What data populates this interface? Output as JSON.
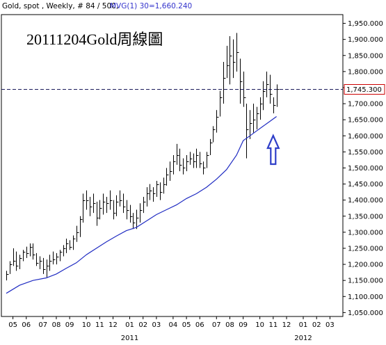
{
  "header": {
    "instrument": "Gold, spot , Weekly, # 84 / 500,",
    "indicator": "MVG(1) 30=1,660.240",
    "indicator_color": "#3333cc"
  },
  "chart_data": {
    "type": "ohlc",
    "title": "20111204Gold周線圖",
    "ylim": [
      1040,
      1975
    ],
    "y_ticks": [
      1050,
      1100,
      1150,
      1200,
      1250,
      1300,
      1350,
      1400,
      1450,
      1500,
      1550,
      1600,
      1650,
      1700,
      1750,
      1800,
      1850,
      1900,
      1950
    ],
    "y_tick_labels": [
      "1,050.000",
      "1,100.000",
      "1,150.000",
      "1,200.000",
      "1,250.000",
      "1,300.000",
      "1,350.000",
      "1,400.000",
      "1,450.000",
      "1,500.000",
      "1,550.000",
      "1,600.000",
      "1,650.000",
      "1,700.000",
      "1,750.000",
      "1,800.000",
      "1,850.000",
      "1,900.000",
      "1,950.000"
    ],
    "x_ticks": [
      {
        "label": "05",
        "week": 2
      },
      {
        "label": "06",
        "week": 6
      },
      {
        "label": "07",
        "week": 11
      },
      {
        "label": "08",
        "week": 15
      },
      {
        "label": "09",
        "week": 19
      },
      {
        "label": "10",
        "week": 24
      },
      {
        "label": "11",
        "week": 28
      },
      {
        "label": "12",
        "week": 32
      },
      {
        "label": "01",
        "week": 37
      },
      {
        "label": "02",
        "week": 41
      },
      {
        "label": "03",
        "week": 45
      },
      {
        "label": "04",
        "week": 50
      },
      {
        "label": "05",
        "week": 54
      },
      {
        "label": "06",
        "week": 58
      },
      {
        "label": "07",
        "week": 63
      },
      {
        "label": "08",
        "week": 67
      },
      {
        "label": "09",
        "week": 71
      },
      {
        "label": "10",
        "week": 76
      },
      {
        "label": "11",
        "week": 80
      },
      {
        "label": "12",
        "week": 84
      },
      {
        "label": "01",
        "week": 89
      },
      {
        "label": "02",
        "week": 93
      },
      {
        "label": "03",
        "week": 97
      }
    ],
    "year_labels": [
      {
        "label": "2011",
        "week": 37
      },
      {
        "label": "2012",
        "week": 89
      }
    ],
    "x_range": [
      0,
      99
    ],
    "bars": [
      [
        1180,
        1150,
        1170
      ],
      [
        1210,
        1170,
        1200
      ],
      [
        1250,
        1195,
        1210
      ],
      [
        1240,
        1180,
        1195
      ],
      [
        1230,
        1185,
        1220
      ],
      [
        1245,
        1210,
        1240
      ],
      [
        1255,
        1220,
        1235
      ],
      [
        1265,
        1225,
        1255
      ],
      [
        1265,
        1215,
        1230
      ],
      [
        1235,
        1195,
        1205
      ],
      [
        1225,
        1185,
        1210
      ],
      [
        1220,
        1170,
        1185
      ],
      [
        1215,
        1160,
        1195
      ],
      [
        1230,
        1180,
        1210
      ],
      [
        1240,
        1200,
        1215
      ],
      [
        1235,
        1200,
        1225
      ],
      [
        1245,
        1210,
        1240
      ],
      [
        1260,
        1225,
        1250
      ],
      [
        1280,
        1235,
        1265
      ],
      [
        1275,
        1245,
        1255
      ],
      [
        1290,
        1245,
        1280
      ],
      [
        1320,
        1270,
        1300
      ],
      [
        1350,
        1285,
        1340
      ],
      [
        1420,
        1330,
        1400
      ],
      [
        1430,
        1370,
        1400
      ],
      [
        1410,
        1350,
        1380
      ],
      [
        1420,
        1360,
        1390
      ],
      [
        1395,
        1320,
        1345
      ],
      [
        1400,
        1340,
        1375
      ],
      [
        1420,
        1355,
        1395
      ],
      [
        1410,
        1360,
        1390
      ],
      [
        1430,
        1370,
        1400
      ],
      [
        1400,
        1340,
        1360
      ],
      [
        1415,
        1350,
        1395
      ],
      [
        1430,
        1380,
        1400
      ],
      [
        1420,
        1360,
        1380
      ],
      [
        1400,
        1340,
        1370
      ],
      [
        1385,
        1330,
        1350
      ],
      [
        1360,
        1310,
        1330
      ],
      [
        1370,
        1310,
        1345
      ],
      [
        1390,
        1330,
        1370
      ],
      [
        1410,
        1360,
        1395
      ],
      [
        1440,
        1380,
        1420
      ],
      [
        1450,
        1400,
        1430
      ],
      [
        1440,
        1395,
        1420
      ],
      [
        1460,
        1410,
        1450
      ],
      [
        1455,
        1400,
        1425
      ],
      [
        1470,
        1420,
        1450
      ],
      [
        1500,
        1445,
        1480
      ],
      [
        1520,
        1460,
        1490
      ],
      [
        1540,
        1480,
        1520
      ],
      [
        1575,
        1510,
        1540
      ],
      [
        1560,
        1490,
        1510
      ],
      [
        1530,
        1480,
        1500
      ],
      [
        1540,
        1490,
        1520
      ],
      [
        1550,
        1510,
        1530
      ],
      [
        1545,
        1500,
        1520
      ],
      [
        1560,
        1500,
        1540
      ],
      [
        1550,
        1500,
        1515
      ],
      [
        1520,
        1480,
        1500
      ],
      [
        1550,
        1500,
        1540
      ],
      [
        1590,
        1540,
        1580
      ],
      [
        1630,
        1580,
        1620
      ],
      [
        1680,
        1610,
        1660
      ],
      [
        1740,
        1660,
        1720
      ],
      [
        1830,
        1700,
        1780
      ],
      [
        1880,
        1780,
        1820
      ],
      [
        1910,
        1760,
        1850
      ],
      [
        1900,
        1780,
        1830
      ],
      [
        1920,
        1800,
        1860
      ],
      [
        1840,
        1700,
        1770
      ],
      [
        1800,
        1690,
        1720
      ],
      [
        1700,
        1530,
        1620
      ],
      [
        1680,
        1590,
        1640
      ],
      [
        1700,
        1610,
        1650
      ],
      [
        1690,
        1620,
        1670
      ],
      [
        1720,
        1650,
        1700
      ],
      [
        1770,
        1680,
        1740
      ],
      [
        1800,
        1720,
        1760
      ],
      [
        1790,
        1700,
        1730
      ],
      [
        1720,
        1670,
        1695
      ],
      [
        1760,
        1690,
        1745
      ]
    ],
    "ma_series": [
      [
        0,
        1110
      ],
      [
        4,
        1135
      ],
      [
        8,
        1150
      ],
      [
        12,
        1158
      ],
      [
        15,
        1170
      ],
      [
        18,
        1188
      ],
      [
        21,
        1205
      ],
      [
        24,
        1230
      ],
      [
        27,
        1250
      ],
      [
        30,
        1270
      ],
      [
        33,
        1288
      ],
      [
        36,
        1305
      ],
      [
        39,
        1315
      ],
      [
        42,
        1335
      ],
      [
        45,
        1355
      ],
      [
        48,
        1370
      ],
      [
        51,
        1385
      ],
      [
        54,
        1405
      ],
      [
        57,
        1420
      ],
      [
        60,
        1440
      ],
      [
        63,
        1465
      ],
      [
        66,
        1495
      ],
      [
        69,
        1540
      ],
      [
        71,
        1585
      ],
      [
        73,
        1600
      ],
      [
        75,
        1615
      ],
      [
        77,
        1630
      ],
      [
        79,
        1645
      ],
      [
        81,
        1660
      ]
    ],
    "last_price": 1745.3,
    "last_price_label": "1,745.300",
    "up_arrow_week": 80,
    "up_arrow_color": "#2e3ec8",
    "ma_color": "#1f2bc2",
    "bar_color": "#000000",
    "grid": false
  }
}
